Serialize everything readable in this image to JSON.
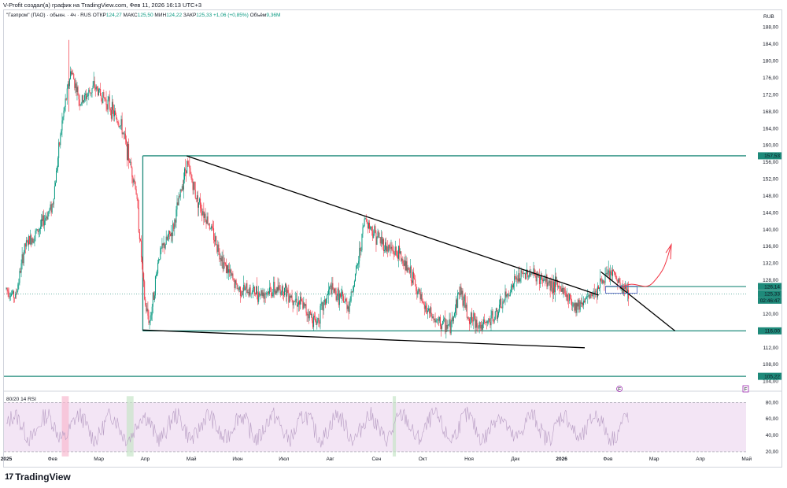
{
  "credit": "V-Profit создал(а) график на TradingView.com, Фев 11, 2026 16:13 UTC+3",
  "legend": {
    "symbol": "\"Газпром\" (ПАО) · обыкн. · 4ч · RUS",
    "open_label": "ОТКР",
    "open": "124,27",
    "high_label": "МАКС",
    "high": "125,50",
    "low_label": "МИН",
    "low": "124,22",
    "close_label": "ЗАКР",
    "close": "125,33",
    "change": "+1,06 (+0,85%)",
    "volume_label": "Объём",
    "volume": "9,36М"
  },
  "currency": "RUB",
  "rsi_title": "80/20 14 RSI",
  "brand": "TradingView",
  "colors": {
    "up": "#089981",
    "down": "#f23645",
    "level": "#1e8a7a",
    "rsi_fill": "#f3e5f5",
    "arrow": "#f23645"
  },
  "chart_data": {
    "type": "candlestick",
    "x_ticks": [
      "2025",
      "Фев",
      "Мар",
      "Апр",
      "Май",
      "Июн",
      "Июл",
      "Авг",
      "Сен",
      "Окт",
      "Ноя",
      "Дек",
      "2026",
      "Фев",
      "Мар",
      "Апр",
      "Май"
    ],
    "y_ticks": [
      "188,00",
      "184,00",
      "180,00",
      "176,00",
      "172,00",
      "168,00",
      "164,00",
      "160,00",
      "156,00",
      "152,00",
      "148,00",
      "144,00",
      "140,00",
      "136,00",
      "132,00",
      "128,00",
      "124,00",
      "120,00",
      "116,00",
      "112,00",
      "108,00",
      "104,00"
    ],
    "ylim": [
      103,
      190
    ],
    "price_path": [
      [
        0,
        126
      ],
      [
        0.2,
        124
      ],
      [
        0.4,
        136
      ],
      [
        0.7,
        140
      ],
      [
        1.0,
        146
      ],
      [
        1.2,
        165
      ],
      [
        1.4,
        178
      ],
      [
        1.6,
        170
      ],
      [
        1.9,
        174
      ],
      [
        2.2,
        170
      ],
      [
        2.5,
        164
      ],
      [
        2.8,
        150
      ],
      [
        3.0,
        122
      ],
      [
        3.1,
        118
      ],
      [
        3.3,
        134
      ],
      [
        3.6,
        140
      ],
      [
        3.9,
        156
      ],
      [
        4.1,
        148
      ],
      [
        4.4,
        141
      ],
      [
        4.7,
        132
      ],
      [
        5.0,
        126
      ],
      [
        5.5,
        125
      ],
      [
        6.0,
        126
      ],
      [
        6.4,
        122
      ],
      [
        6.7,
        118
      ],
      [
        7.0,
        126
      ],
      [
        7.4,
        122
      ],
      [
        7.6,
        132
      ],
      [
        7.75,
        143
      ],
      [
        7.9,
        140
      ],
      [
        8.2,
        136
      ],
      [
        8.5,
        134
      ],
      [
        8.8,
        128
      ],
      [
        9.0,
        122
      ],
      [
        9.3,
        118
      ],
      [
        9.6,
        117
      ],
      [
        9.8,
        126
      ],
      [
        10.0,
        119
      ],
      [
        10.3,
        117
      ],
      [
        10.6,
        120
      ],
      [
        11.0,
        128
      ],
      [
        11.3,
        130
      ],
      [
        11.6,
        128
      ],
      [
        12.0,
        126
      ],
      [
        12.3,
        122
      ],
      [
        12.6,
        124
      ],
      [
        12.9,
        128
      ],
      [
        13.1,
        130
      ],
      [
        13.3,
        126
      ],
      [
        13.45,
        125.3
      ]
    ],
    "levels": [
      {
        "value": 157.53,
        "label": "157,53"
      },
      {
        "value": 116.0,
        "label": "116,00"
      },
      {
        "value": 105.22,
        "label": "105,22"
      }
    ],
    "price_tags": [
      {
        "value": 126.14,
        "label": "126,14"
      },
      {
        "value": 125.33,
        "label": "125,33",
        "countdown": "02:46:47"
      }
    ],
    "trendlines": [
      {
        "from": [
          3.9,
          157.5
        ],
        "to": [
          12.8,
          124.5
        ]
      },
      {
        "from": [
          2.95,
          116.2
        ],
        "to": [
          12.5,
          112.0
        ]
      },
      {
        "from": [
          12.85,
          130.0
        ],
        "to": [
          14.45,
          116.0
        ]
      }
    ],
    "rsi": {
      "upper": 80,
      "lower": 20,
      "ticks": [
        "80,00",
        "60,00",
        "40,00",
        "20,00"
      ],
      "ylim": [
        18,
        86
      ],
      "flag": "F"
    }
  }
}
